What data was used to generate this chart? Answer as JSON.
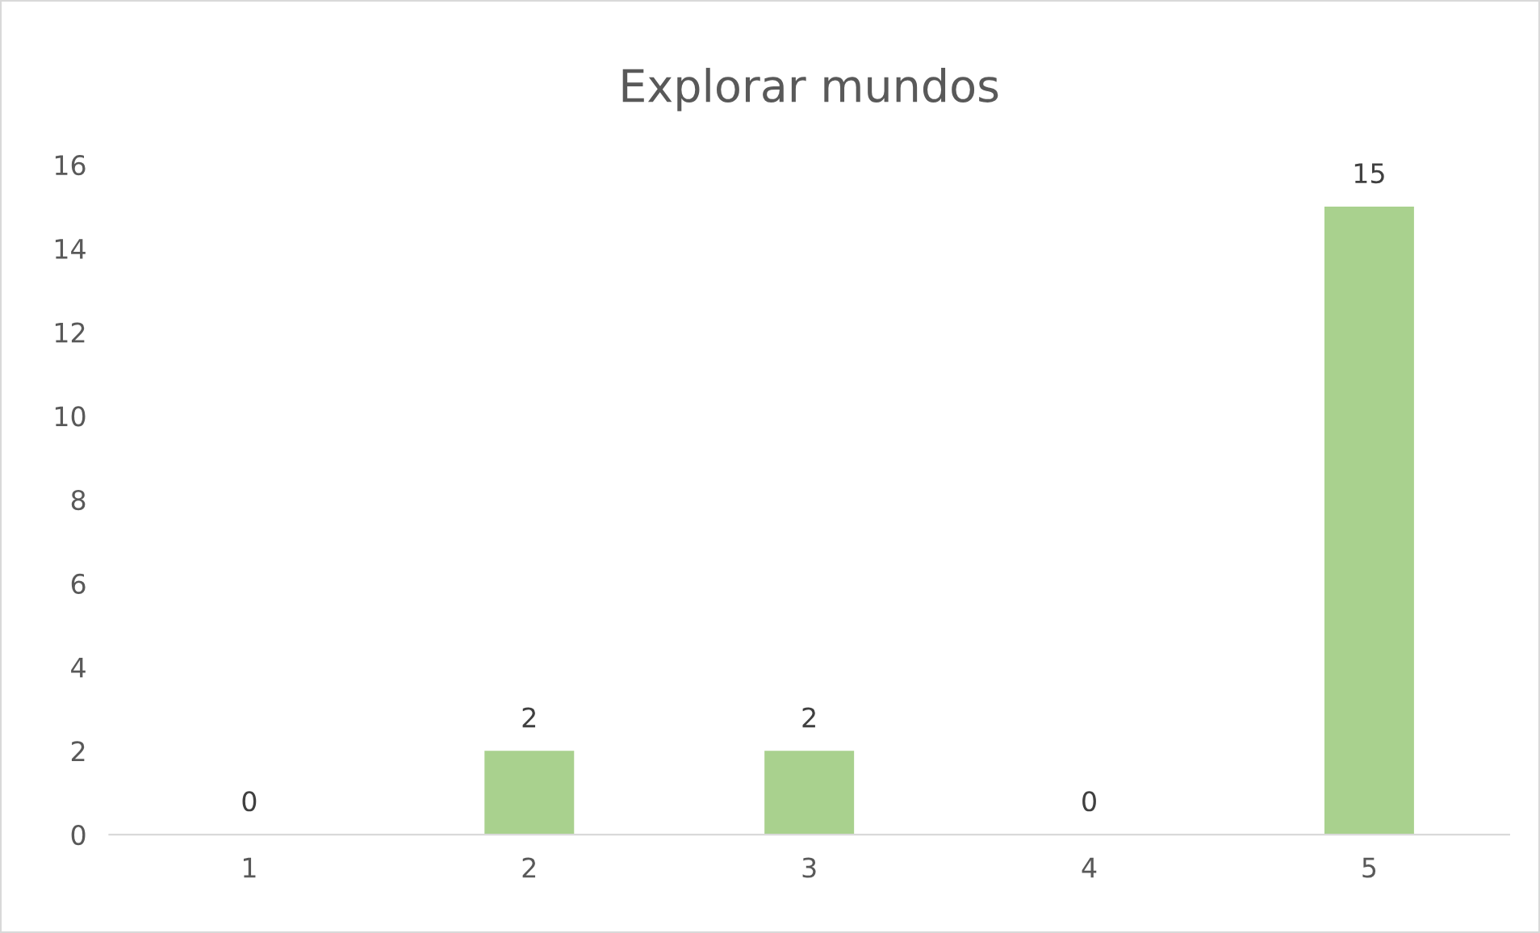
{
  "chart_data": {
    "type": "bar",
    "title": "Explorar mundos",
    "categories": [
      "1",
      "2",
      "3",
      "4",
      "5"
    ],
    "values": [
      0,
      2,
      2,
      0,
      15
    ],
    "color": "#a9d18e",
    "ylim": [
      0,
      16
    ],
    "yticks": [
      0,
      2,
      4,
      6,
      8,
      10,
      12,
      14,
      16
    ],
    "grid": false,
    "data_labels": true
  }
}
